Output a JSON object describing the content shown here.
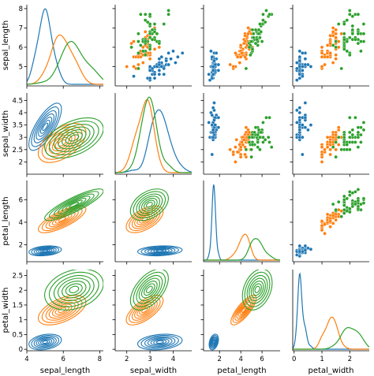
{
  "chart_data": {
    "type": "pairgrid",
    "variables": [
      "sepal_length",
      "sepal_width",
      "petal_length",
      "petal_width"
    ],
    "diag": "kde",
    "upper": "scatter",
    "lower": "kde_contour",
    "legend": "none",
    "grid": false,
    "colors": [
      "#1f77b4",
      "#ff7f0e",
      "#2ca02c"
    ],
    "axes": {
      "sepal_length": {
        "lim": [
          4.0,
          8.2
        ],
        "ticks": [
          4,
          6,
          8
        ],
        "labeled_ticks_y": [
          5,
          6,
          7,
          8
        ]
      },
      "sepal_width": {
        "lim": [
          1.5,
          4.8
        ],
        "ticks": [
          2,
          3,
          4
        ],
        "labeled_ticks_y": [
          2.0,
          2.5,
          3.0,
          3.5,
          4.0,
          4.5
        ]
      },
      "petal_length": {
        "lim": [
          0.5,
          7.7
        ],
        "ticks": [
          2,
          4,
          6
        ],
        "labeled_ticks_y": [
          2,
          4,
          6
        ]
      },
      "petal_width": {
        "lim": [
          -0.05,
          2.7
        ],
        "ticks": [
          0,
          1,
          2,
          3
        ],
        "labeled_ticks_y": [
          0.0,
          0.5,
          1.0,
          1.5,
          2.0,
          2.5
        ]
      }
    },
    "groups": [
      {
        "sepal_length": [
          5.1,
          4.9,
          4.7,
          4.6,
          5.0,
          5.4,
          4.6,
          5.0,
          4.4,
          4.9,
          5.4,
          4.8,
          4.8,
          4.3,
          5.8,
          5.7,
          5.4,
          5.1,
          5.7,
          5.1,
          5.4,
          5.1,
          4.6,
          5.1,
          4.8,
          5.0,
          5.0,
          5.2,
          5.2,
          4.7,
          4.8,
          5.4,
          5.2,
          5.5,
          4.9,
          5.0,
          5.5,
          4.9,
          4.4,
          5.1,
          5.0,
          4.5,
          4.4,
          5.0,
          5.1,
          4.8,
          5.1,
          4.6,
          5.3,
          5.0
        ],
        "sepal_width": [
          3.5,
          3.0,
          3.2,
          3.1,
          3.6,
          3.9,
          3.4,
          3.4,
          2.9,
          3.1,
          3.7,
          3.4,
          3.0,
          3.0,
          4.0,
          4.4,
          3.9,
          3.5,
          3.8,
          3.8,
          3.4,
          3.7,
          3.6,
          3.3,
          3.4,
          3.0,
          3.4,
          3.5,
          3.4,
          3.2,
          3.1,
          3.4,
          4.1,
          4.2,
          3.1,
          3.2,
          3.5,
          3.6,
          3.0,
          3.4,
          3.5,
          2.3,
          3.2,
          3.5,
          3.8,
          3.0,
          3.8,
          3.2,
          3.7,
          3.3
        ],
        "petal_length": [
          1.4,
          1.4,
          1.3,
          1.5,
          1.4,
          1.7,
          1.4,
          1.5,
          1.4,
          1.5,
          1.5,
          1.6,
          1.4,
          1.1,
          1.2,
          1.5,
          1.3,
          1.4,
          1.7,
          1.5,
          1.7,
          1.5,
          1.0,
          1.7,
          1.9,
          1.6,
          1.6,
          1.5,
          1.4,
          1.6,
          1.6,
          1.5,
          1.5,
          1.4,
          1.5,
          1.2,
          1.3,
          1.4,
          1.3,
          1.5,
          1.3,
          1.3,
          1.3,
          1.6,
          1.9,
          1.4,
          1.6,
          1.4,
          1.5,
          1.4
        ],
        "petal_width": [
          0.2,
          0.2,
          0.2,
          0.2,
          0.2,
          0.4,
          0.3,
          0.2,
          0.2,
          0.1,
          0.2,
          0.2,
          0.1,
          0.1,
          0.2,
          0.4,
          0.4,
          0.3,
          0.3,
          0.3,
          0.2,
          0.4,
          0.2,
          0.5,
          0.2,
          0.2,
          0.4,
          0.2,
          0.2,
          0.2,
          0.2,
          0.4,
          0.1,
          0.2,
          0.2,
          0.2,
          0.2,
          0.1,
          0.2,
          0.2,
          0.3,
          0.3,
          0.2,
          0.6,
          0.4,
          0.3,
          0.2,
          0.2,
          0.2,
          0.2
        ]
      },
      {
        "sepal_length": [
          7.0,
          6.4,
          6.9,
          5.5,
          6.5,
          5.7,
          6.3,
          4.9,
          6.6,
          5.2,
          5.0,
          5.9,
          6.0,
          6.1,
          5.6,
          6.7,
          5.6,
          5.8,
          6.2,
          5.6,
          5.9,
          6.1,
          6.3,
          6.1,
          6.4,
          6.6,
          6.8,
          6.7,
          6.0,
          5.7,
          5.5,
          5.5,
          5.8,
          6.0,
          5.4,
          6.0,
          6.7,
          6.3,
          5.6,
          5.5,
          5.5,
          6.1,
          5.8,
          5.0,
          5.6,
          5.7,
          5.7,
          6.2,
          5.1,
          5.7
        ],
        "sepal_width": [
          3.2,
          3.2,
          3.1,
          2.3,
          2.8,
          2.8,
          3.3,
          2.4,
          2.9,
          2.7,
          2.0,
          3.0,
          2.2,
          2.9,
          2.9,
          3.1,
          3.0,
          2.7,
          2.2,
          2.5,
          3.2,
          2.8,
          2.5,
          2.8,
          2.9,
          3.0,
          2.8,
          3.0,
          2.9,
          2.6,
          2.4,
          2.4,
          2.7,
          2.7,
          3.0,
          3.4,
          3.1,
          2.3,
          3.0,
          2.5,
          2.6,
          3.0,
          2.6,
          2.3,
          2.7,
          3.0,
          2.9,
          2.9,
          2.5,
          2.8
        ],
        "petal_length": [
          4.7,
          4.5,
          4.9,
          4.0,
          4.6,
          4.5,
          4.7,
          3.3,
          4.6,
          3.9,
          3.5,
          4.2,
          4.0,
          4.7,
          3.6,
          4.4,
          4.5,
          4.1,
          4.5,
          3.9,
          4.8,
          4.0,
          4.9,
          4.7,
          4.3,
          4.4,
          4.8,
          5.0,
          4.5,
          3.5,
          3.8,
          3.7,
          3.9,
          5.1,
          4.5,
          4.5,
          4.7,
          4.4,
          4.1,
          4.0,
          4.4,
          4.6,
          4.0,
          3.3,
          4.2,
          4.2,
          4.2,
          4.3,
          3.0,
          4.1
        ],
        "petal_width": [
          1.4,
          1.5,
          1.5,
          1.3,
          1.5,
          1.3,
          1.6,
          1.0,
          1.3,
          1.4,
          1.0,
          1.5,
          1.0,
          1.4,
          1.3,
          1.4,
          1.5,
          1.0,
          1.5,
          1.1,
          1.8,
          1.3,
          1.5,
          1.2,
          1.3,
          1.4,
          1.4,
          1.7,
          1.5,
          1.0,
          1.1,
          1.0,
          1.2,
          1.6,
          1.5,
          1.6,
          1.5,
          1.3,
          1.3,
          1.3,
          1.2,
          1.4,
          1.2,
          1.0,
          1.3,
          1.2,
          1.3,
          1.3,
          1.1,
          1.3
        ]
      },
      {
        "sepal_length": [
          6.3,
          5.8,
          7.1,
          6.3,
          6.5,
          7.6,
          4.9,
          7.3,
          6.7,
          7.2,
          6.5,
          6.4,
          6.8,
          5.7,
          5.8,
          6.4,
          6.5,
          7.7,
          7.7,
          6.0,
          6.9,
          5.6,
          7.7,
          6.3,
          6.7,
          7.2,
          6.2,
          6.1,
          6.4,
          7.2,
          7.4,
          7.9,
          6.4,
          6.3,
          6.1,
          7.7,
          6.3,
          6.4,
          6.0,
          6.9,
          6.7,
          6.9,
          5.8,
          6.8,
          6.7,
          6.7,
          6.3,
          6.5,
          6.2,
          5.9
        ],
        "sepal_width": [
          3.3,
          2.7,
          3.0,
          2.9,
          3.0,
          3.0,
          2.5,
          2.9,
          2.5,
          3.6,
          3.2,
          2.7,
          3.0,
          2.5,
          2.8,
          3.2,
          3.0,
          3.8,
          2.6,
          2.2,
          3.2,
          2.8,
          2.8,
          2.7,
          3.3,
          3.2,
          2.8,
          3.0,
          2.8,
          3.0,
          2.8,
          3.8,
          2.8,
          2.8,
          2.6,
          3.0,
          3.4,
          3.1,
          3.0,
          3.1,
          3.1,
          3.1,
          2.7,
          3.2,
          3.3,
          3.0,
          2.5,
          3.0,
          3.4,
          3.0
        ],
        "petal_length": [
          6.0,
          5.1,
          5.9,
          5.6,
          5.8,
          6.6,
          4.5,
          6.3,
          5.8,
          6.1,
          5.1,
          5.3,
          5.5,
          5.0,
          5.1,
          5.3,
          5.5,
          6.7,
          6.9,
          5.0,
          5.7,
          4.9,
          6.7,
          4.9,
          5.7,
          6.0,
          4.8,
          4.9,
          5.6,
          5.8,
          6.1,
          6.4,
          5.6,
          5.1,
          5.6,
          6.1,
          5.6,
          5.5,
          4.8,
          5.4,
          5.6,
          5.1,
          5.1,
          5.9,
          5.7,
          5.2,
          5.0,
          5.2,
          5.4,
          5.1
        ],
        "petal_width": [
          2.5,
          1.9,
          2.1,
          1.8,
          2.2,
          2.1,
          1.7,
          1.8,
          1.8,
          2.5,
          2.0,
          1.9,
          2.1,
          2.0,
          2.4,
          2.3,
          1.8,
          2.2,
          2.3,
          1.5,
          2.3,
          2.0,
          2.0,
          1.8,
          2.1,
          1.8,
          1.8,
          1.8,
          2.1,
          1.6,
          1.9,
          2.0,
          2.2,
          1.5,
          1.4,
          2.3,
          2.4,
          1.8,
          1.8,
          2.1,
          2.4,
          2.3,
          1.9,
          2.3,
          2.5,
          2.3,
          1.9,
          2.0,
          2.3,
          1.8
        ]
      }
    ]
  }
}
